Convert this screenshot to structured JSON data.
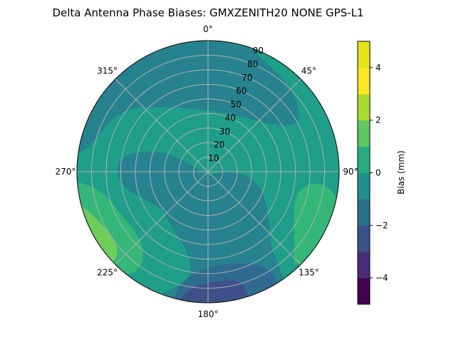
{
  "chart_data": {
    "type": "heatmap",
    "subtype": "polar-filled-contour",
    "title": "Delta Antenna Phase Biases: GMXZENITH20     NONE GPS-L1",
    "angle_ticks": [
      "0°",
      "45°",
      "90°",
      "135°",
      "180°",
      "225°",
      "270°",
      "315°"
    ],
    "radial_ticks": [
      "10",
      "20",
      "30",
      "40",
      "50",
      "60",
      "70",
      "80",
      "90"
    ],
    "radial_range": [
      0,
      90
    ],
    "grid": true,
    "colorbar": {
      "label": "Bias (mm)",
      "levels": [
        -5,
        -4,
        -3,
        -2,
        -1,
        0,
        1,
        2,
        3,
        4,
        5
      ],
      "tick_labels": [
        "−4",
        "−2",
        "0",
        "2",
        "4"
      ],
      "colormap": "viridis",
      "colors": [
        "#440154",
        "#472c7a",
        "#3b518b",
        "#2c718e",
        "#21908d",
        "#27ad81",
        "#5cc863",
        "#aadc32",
        "#fde725",
        "#e5e419"
      ]
    },
    "regions": [
      {
        "level": "-1 to 0",
        "location": "upper half (north-west to north-east) and central band toward south"
      },
      {
        "level": "0 to 1",
        "location": "background / zenith ring and west-south-west"
      },
      {
        "level": "1 to 2",
        "location": "north-east edge, east-south-east edge, west-south-west edge"
      },
      {
        "level": "2 to 3",
        "location": "west-south-west edge near 240°"
      },
      {
        "level": "-2 to -1",
        "location": "south edge near 180°"
      },
      {
        "level": "-3 to -2",
        "location": "south edge near 180-190°"
      }
    ]
  }
}
